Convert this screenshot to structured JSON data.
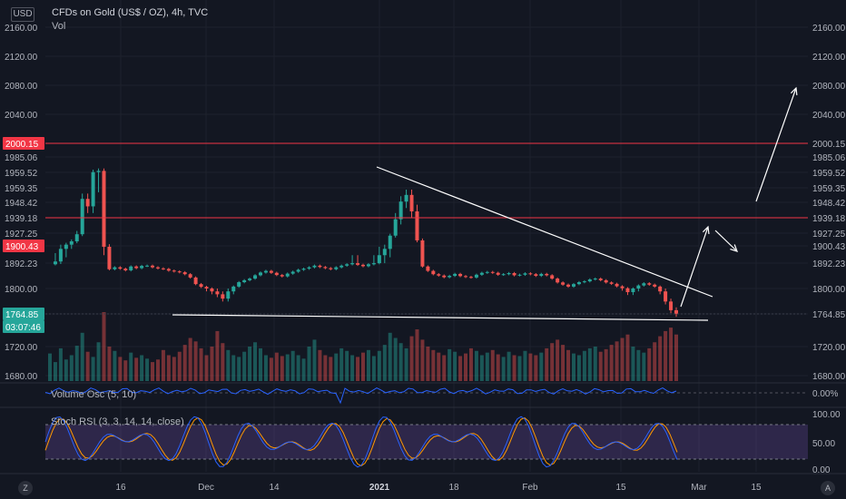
{
  "header": {
    "currency_badge": "USD",
    "title": "CFDs on Gold (US$ / OZ), 4h, TVC",
    "vol_label": "Vol"
  },
  "corner_buttons": {
    "left": "Z",
    "right": "A"
  },
  "colors": {
    "background": "#131722",
    "grid": "#1e222d",
    "up": "#26a69a",
    "down": "#ef5350",
    "resistance_line": "#f23645",
    "trend_line": "#ffffff",
    "price_badge": "#26a69a",
    "osc_line": "#2962ff",
    "stoch_k": "#2962ff",
    "stoch_d": "#ff9800",
    "stoch_band": "#7e57c2"
  },
  "chart_data": [
    {
      "type": "candlestick",
      "title": "CFDs on Gold (US$ / OZ), 4h, TVC",
      "x_tick_labels": [
        "16",
        "Dec",
        "14",
        "2021",
        "18",
        "Feb",
        "15",
        "Mar",
        "15"
      ],
      "y_tick_labels": [
        "2160.00",
        "2120.00",
        "2080.00",
        "2040.00",
        "2000.15",
        "1985.06",
        "1959.52",
        "1959.35",
        "1948.42",
        "1939.18",
        "1927.25",
        "1900.43",
        "1892.23",
        "1800.00",
        "1764.85",
        "1720.00",
        "1680.00"
      ],
      "highlighted_price_labels": [
        {
          "label": "2000.15",
          "color": "#f23645"
        },
        {
          "label": "1900.43",
          "color": "#f23645"
        },
        {
          "label": "1764.85",
          "color": "#26a69a"
        },
        {
          "label": "03:07:46",
          "color": "#26a69a"
        }
      ],
      "close_path": [
        1888,
        1893,
        1899,
        1903,
        1910,
        1925,
        1951,
        1946,
        1960,
        1962,
        1900,
        1870,
        1877,
        1872,
        1866,
        1880,
        1874,
        1882,
        1883,
        1877,
        1873,
        1871,
        1865,
        1862,
        1859,
        1852,
        1840,
        1816,
        1806,
        1800,
        1796,
        1792,
        1786,
        1796,
        1807,
        1823,
        1830,
        1836,
        1848,
        1858,
        1864,
        1857,
        1849,
        1844,
        1854,
        1861,
        1868,
        1872,
        1877,
        1883,
        1878,
        1874,
        1870,
        1877,
        1883,
        1888,
        1892,
        1886,
        1881,
        1888,
        1892,
        1896,
        1899,
        1922,
        1938,
        1949,
        1954,
        1943,
        1912,
        1880,
        1864,
        1852,
        1847,
        1841,
        1846,
        1853,
        1845,
        1842,
        1840,
        1850,
        1857,
        1860,
        1857,
        1850,
        1852,
        1856,
        1848,
        1850,
        1855,
        1852,
        1846,
        1853,
        1848,
        1836,
        1822,
        1814,
        1807,
        1816,
        1823,
        1826,
        1833,
        1836,
        1830,
        1822,
        1817,
        1808,
        1801,
        1795,
        1800,
        1811,
        1819,
        1814,
        1807,
        1796,
        1782,
        1770,
        1765
      ],
      "volume_path": [
        32,
        22,
        38,
        25,
        30,
        41,
        56,
        34,
        28,
        45,
        80,
        40,
        35,
        28,
        24,
        33,
        27,
        30,
        26,
        22,
        25,
        36,
        30,
        28,
        34,
        42,
        50,
        46,
        38,
        30,
        40,
        58,
        44,
        36,
        30,
        28,
        34,
        40,
        45,
        38,
        30,
        27,
        33,
        29,
        31,
        35,
        30,
        26,
        40,
        48,
        36,
        30,
        28,
        32,
        38,
        35,
        30,
        28,
        33,
        36,
        29,
        35,
        42,
        56,
        50,
        44,
        38,
        52,
        60,
        48,
        40,
        36,
        33,
        30,
        37,
        34,
        29,
        32,
        38,
        35,
        30,
        33,
        36,
        31,
        28,
        34,
        30,
        29,
        35,
        32,
        30,
        33,
        38,
        44,
        48,
        42,
        36,
        32,
        30,
        35,
        38,
        40,
        34,
        37,
        42,
        46,
        50,
        54,
        40,
        36,
        33,
        38,
        45,
        52,
        58,
        62,
        54
      ],
      "drawings": {
        "horizontal_lines": [
          2000.15,
          1939.18
        ],
        "support_line": [
          1766,
          1764
        ],
        "descending_trendline": [
          1987,
          1795
        ],
        "projection_targets": [
          1920,
          1890,
          1950,
          2075
        ]
      }
    },
    {
      "type": "line",
      "title": "Volume Osc (5, 10)",
      "y_tick_labels": [
        "0.00%"
      ]
    },
    {
      "type": "line",
      "title": "Stoch RSI (3, 3, 14, 14, close)",
      "y_tick_labels": [
        "100.00",
        "50.00",
        "0.00"
      ],
      "series": [
        {
          "name": "K",
          "values": []
        },
        {
          "name": "D",
          "values": []
        }
      ],
      "bands": [
        80,
        20
      ]
    }
  ]
}
